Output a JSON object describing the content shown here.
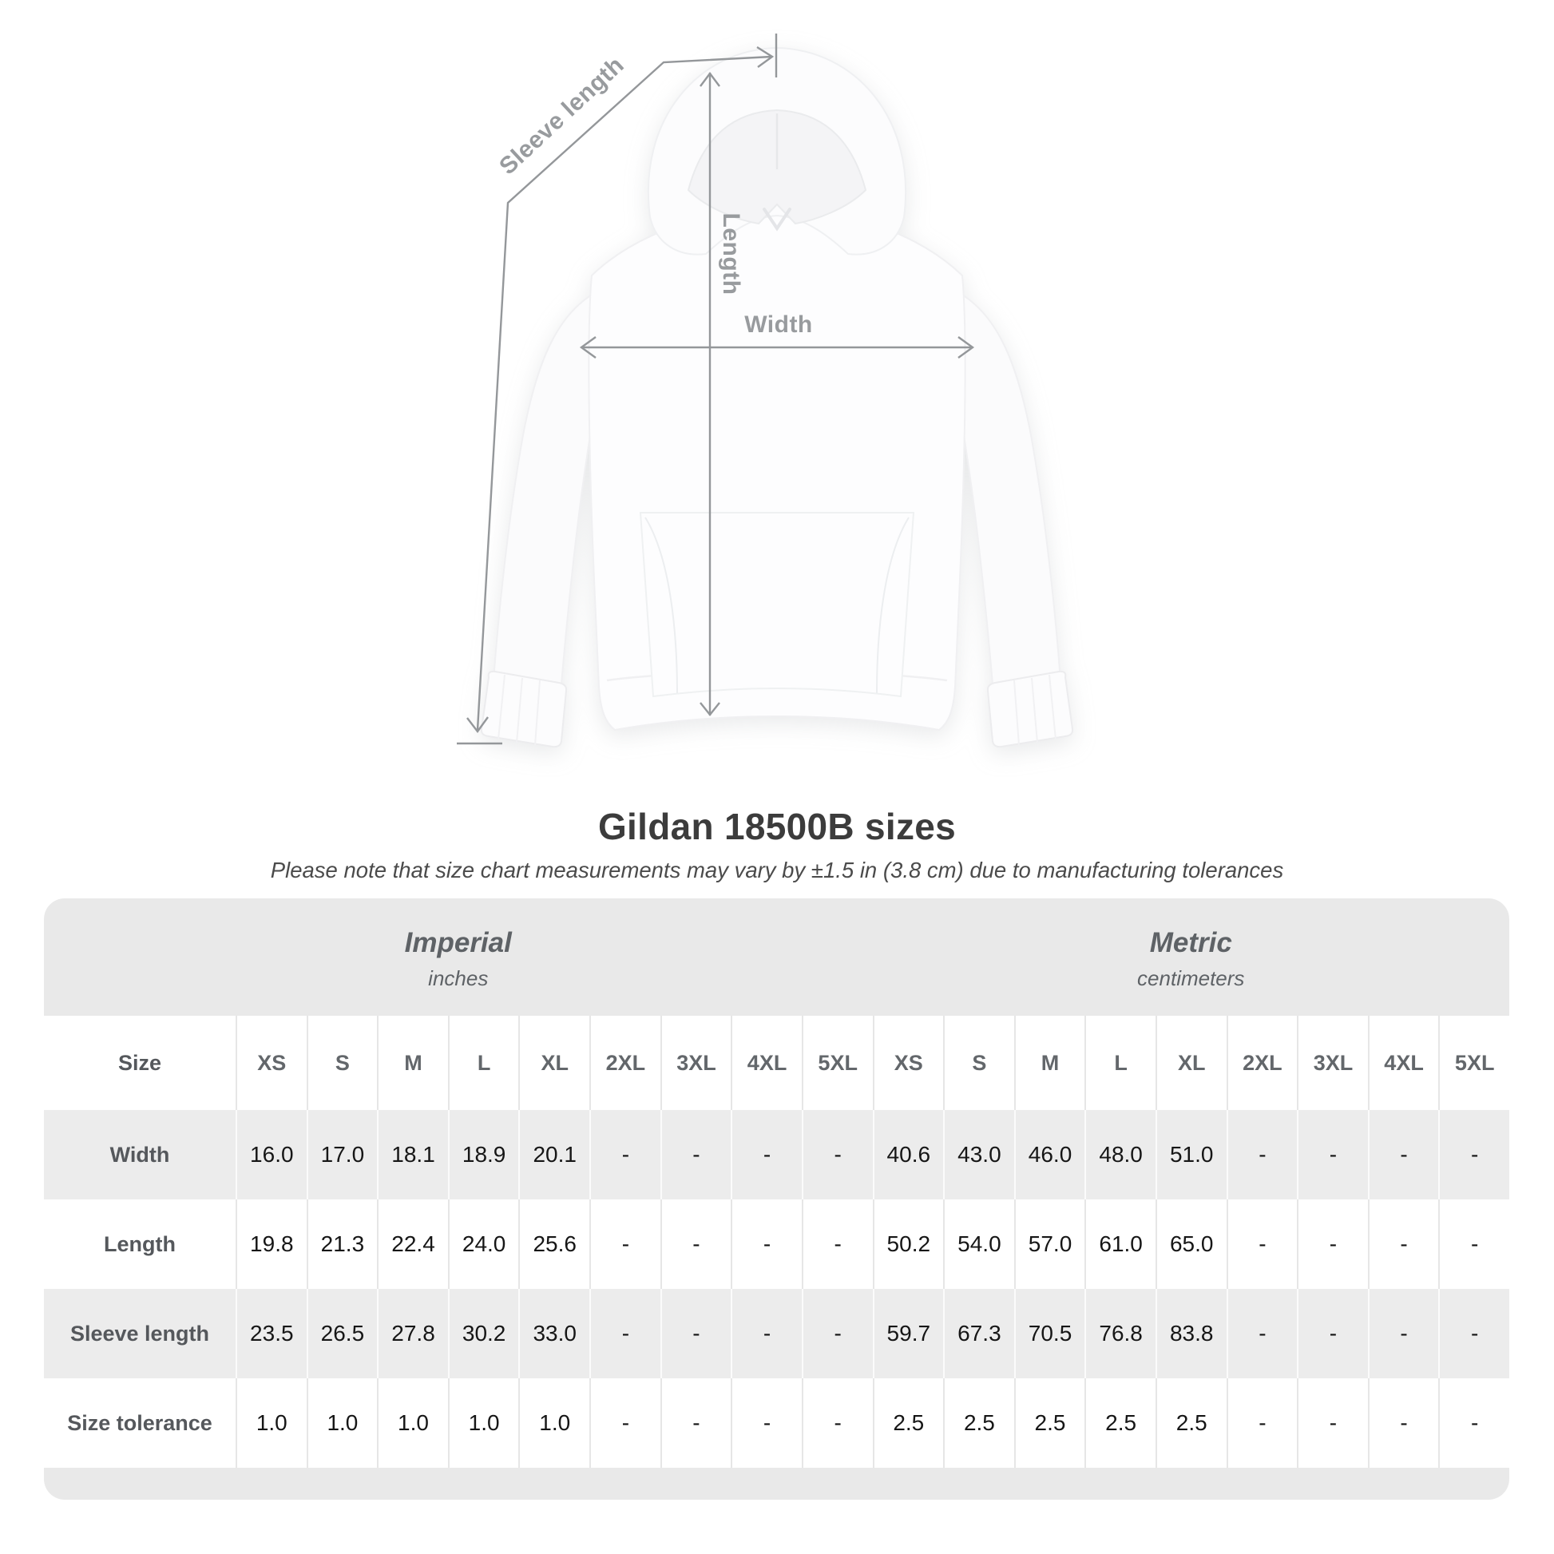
{
  "header": {
    "title": "Gildan 18500B sizes",
    "subtitle": "Please note that size chart measurements may vary by ±1.5 in (3.8 cm) due to manufacturing tolerances"
  },
  "diagram": {
    "labels": {
      "sleeve_length": "Sleeve length",
      "length": "Length",
      "width": "Width"
    },
    "line_color": "#94979a",
    "label_color": "#989b9e"
  },
  "table": {
    "corner_label": "Size",
    "unit_groups": [
      {
        "name": "Imperial",
        "unit": "inches"
      },
      {
        "name": "Metric",
        "unit": "centimeters"
      }
    ],
    "sizes": [
      "XS",
      "S",
      "M",
      "L",
      "XL",
      "2XL",
      "3XL",
      "4XL",
      "5XL"
    ],
    "rows": [
      {
        "label": "Width",
        "shaded": true,
        "imperial": [
          "16.0",
          "17.0",
          "18.1",
          "18.9",
          "20.1",
          "-",
          "-",
          "-",
          "-"
        ],
        "metric": [
          "40.6",
          "43.0",
          "46.0",
          "48.0",
          "51.0",
          "-",
          "-",
          "-",
          "-"
        ]
      },
      {
        "label": "Length",
        "shaded": false,
        "imperial": [
          "19.8",
          "21.3",
          "22.4",
          "24.0",
          "25.6",
          "-",
          "-",
          "-",
          "-"
        ],
        "metric": [
          "50.2",
          "54.0",
          "57.0",
          "61.0",
          "65.0",
          "-",
          "-",
          "-",
          "-"
        ]
      },
      {
        "label": "Sleeve length",
        "shaded": true,
        "imperial": [
          "23.5",
          "26.5",
          "27.8",
          "30.2",
          "33.0",
          "-",
          "-",
          "-",
          "-"
        ],
        "metric": [
          "59.7",
          "67.3",
          "70.5",
          "76.8",
          "83.8",
          "-",
          "-",
          "-",
          "-"
        ]
      },
      {
        "label": "Size tolerance",
        "shaded": false,
        "imperial": [
          "1.0",
          "1.0",
          "1.0",
          "1.0",
          "1.0",
          "-",
          "-",
          "-",
          "-"
        ],
        "metric": [
          "2.5",
          "2.5",
          "2.5",
          "2.5",
          "2.5",
          "-",
          "-",
          "-",
          "-"
        ]
      }
    ],
    "colors": {
      "band_gray": "#e9e9e9",
      "stripe_gray": "#ececec",
      "separator": "#e6e6e6",
      "value_text": "#161616",
      "label_text": "#55585c",
      "heading_text": "#3c3c3c"
    }
  }
}
